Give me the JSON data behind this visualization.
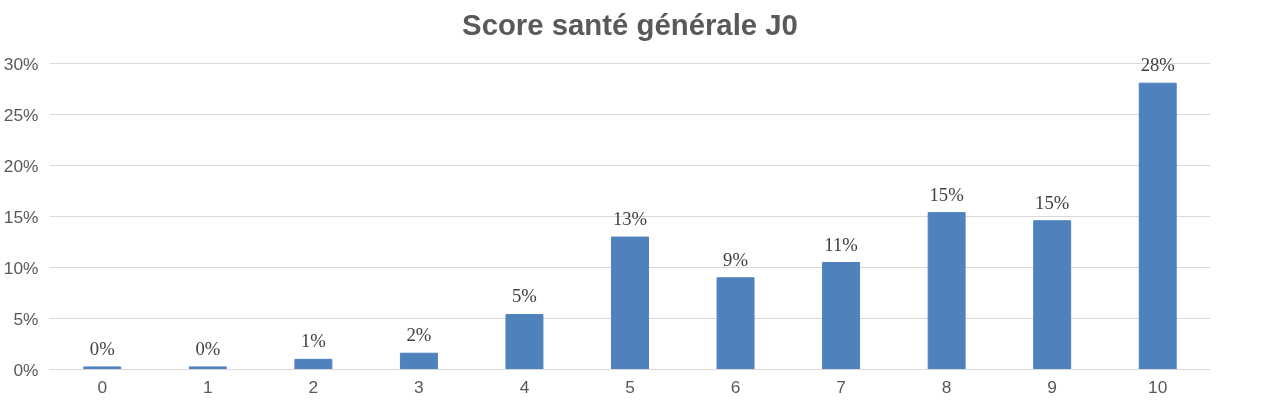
{
  "chart_data": {
    "type": "bar",
    "title": "Score santé générale J0",
    "categories": [
      "0",
      "1",
      "2",
      "3",
      "4",
      "5",
      "6",
      "7",
      "8",
      "9",
      "10"
    ],
    "values": [
      0.25,
      0.25,
      1.0,
      1.6,
      5.4,
      13.0,
      9.0,
      10.5,
      15.4,
      14.6,
      28.1
    ],
    "value_labels": [
      "0%",
      "0%",
      "1%",
      "2%",
      "5%",
      "13%",
      "9%",
      "11%",
      "15%",
      "15%",
      "28%"
    ],
    "color": "#4f81bd",
    "ylim": [
      0,
      30
    ],
    "yticks": [
      {
        "value": 0,
        "label": "0%"
      },
      {
        "value": 5,
        "label": "5%"
      },
      {
        "value": 10,
        "label": "10%"
      },
      {
        "value": 15,
        "label": "15%"
      },
      {
        "value": 20,
        "label": "20%"
      },
      {
        "value": 25,
        "label": "25%"
      },
      {
        "value": 30,
        "label": "30%"
      }
    ],
    "grid": "y"
  }
}
